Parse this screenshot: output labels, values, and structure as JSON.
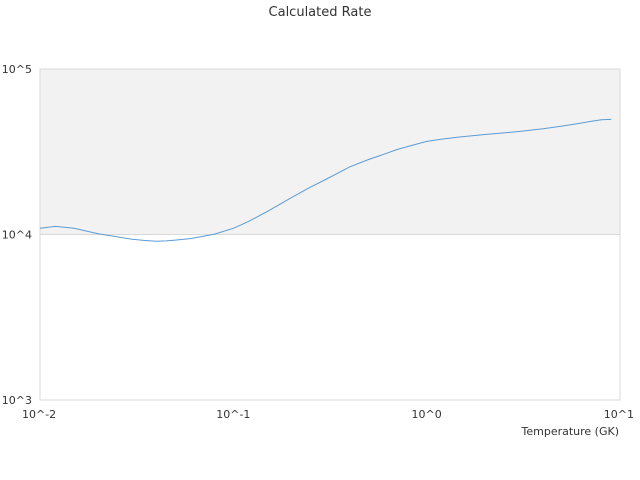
{
  "chart_data": {
    "type": "line",
    "title": "Calculated Rate",
    "xlabel": "Temperature (GK)",
    "ylabel": "",
    "x_scale": "log",
    "y_scale": "log",
    "xlim": [
      0.01,
      10
    ],
    "ylim": [
      1000,
      100000
    ],
    "x_ticks": [
      {
        "value": 0.01,
        "label": "10^-2"
      },
      {
        "value": 0.1,
        "label": "10^-1"
      },
      {
        "value": 1,
        "label": "10^0"
      },
      {
        "value": 10,
        "label": "10^1"
      }
    ],
    "y_ticks": [
      {
        "value": 1000,
        "label": "10^3"
      },
      {
        "value": 10000,
        "label": "10^4"
      },
      {
        "value": 100000,
        "label": "10^5"
      }
    ],
    "grid": false,
    "legend": "none",
    "colors": {
      "line": "#5b9bd5",
      "band_fill": "#f2f2f2",
      "border": "#d9d9d9"
    },
    "series": [
      {
        "x": [
          0.01,
          0.012,
          0.015,
          0.02,
          0.025,
          0.03,
          0.035,
          0.04,
          0.045,
          0.05,
          0.06,
          0.07,
          0.08,
          0.1,
          0.12,
          0.15,
          0.2,
          0.25,
          0.3,
          0.4,
          0.5,
          0.6,
          0.7,
          0.8,
          1.0,
          1.2,
          1.5,
          2.0,
          2.5,
          3.0,
          4.0,
          5.0,
          6.0,
          7.0,
          8.0,
          9.0
        ],
        "values": [
          10900,
          11200,
          10900,
          10100,
          9700,
          9350,
          9200,
          9100,
          9150,
          9250,
          9450,
          9750,
          10050,
          10900,
          12000,
          13800,
          16700,
          19300,
          21500,
          25600,
          28400,
          30500,
          32600,
          34000,
          36500,
          37700,
          38900,
          40200,
          41100,
          41900,
          43500,
          45200,
          46700,
          48200,
          49400,
          49600
        ]
      }
    ]
  }
}
